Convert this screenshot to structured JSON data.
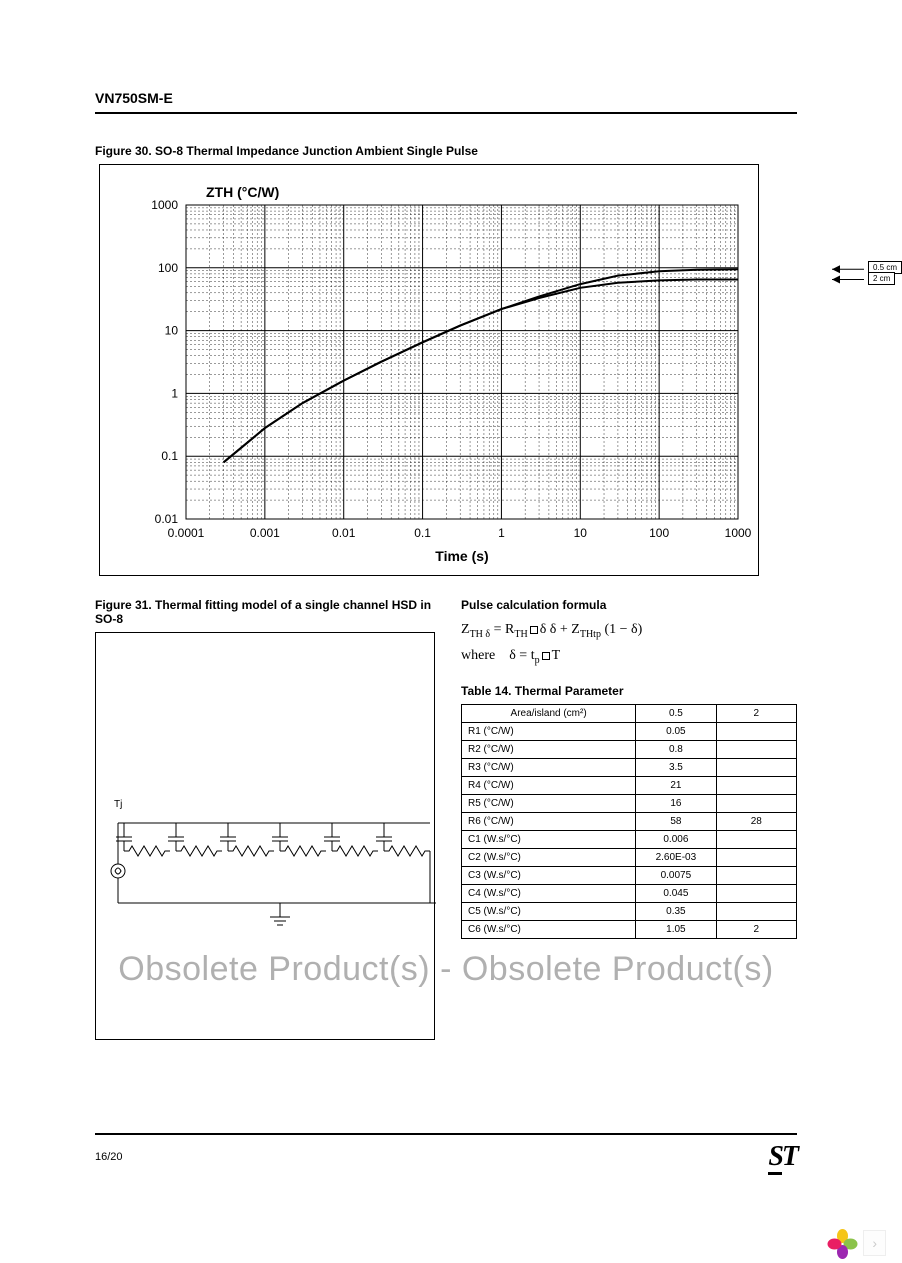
{
  "header": {
    "title": "VN750SM-E"
  },
  "figure30": {
    "caption": "Figure 30. SO-8 Thermal Impedance Junction Ambient Single Pulse",
    "ylabel": "ZTH (°C/W)",
    "xlabel": "Time (s)",
    "type": "line",
    "x_log": true,
    "y_log": true,
    "xlim": [
      0.0001,
      1000
    ],
    "ylim": [
      0.01,
      1000
    ],
    "xticks": [
      "0.0001",
      "0.001",
      "0.01",
      "0.1",
      "1",
      "10",
      "100",
      "1000"
    ],
    "yticks": [
      "0.01",
      "0.1",
      "1",
      "10",
      "100",
      "1000"
    ],
    "grid_color": "#000000",
    "line_color": "#000000",
    "line_width": 2,
    "bg_color": "#ffffff",
    "annotations": [
      {
        "label": "0.5 cm",
        "y_value": 95
      },
      {
        "label": "2 cm",
        "y_value": 65
      }
    ],
    "series": [
      {
        "name": "0.5cm",
        "points": [
          [
            0.0003,
            0.08
          ],
          [
            0.001,
            0.28
          ],
          [
            0.003,
            0.7
          ],
          [
            0.01,
            1.6
          ],
          [
            0.03,
            3.2
          ],
          [
            0.1,
            6.5
          ],
          [
            0.3,
            12
          ],
          [
            1,
            22
          ],
          [
            3,
            35
          ],
          [
            10,
            55
          ],
          [
            30,
            75
          ],
          [
            100,
            88
          ],
          [
            300,
            93
          ],
          [
            1000,
            95
          ]
        ]
      },
      {
        "name": "2cm",
        "points": [
          [
            0.0003,
            0.08
          ],
          [
            0.001,
            0.28
          ],
          [
            0.003,
            0.7
          ],
          [
            0.01,
            1.6
          ],
          [
            0.03,
            3.2
          ],
          [
            0.1,
            6.5
          ],
          [
            0.3,
            12
          ],
          [
            1,
            22
          ],
          [
            3,
            33
          ],
          [
            10,
            48
          ],
          [
            30,
            58
          ],
          [
            100,
            63
          ],
          [
            300,
            65
          ],
          [
            1000,
            65
          ]
        ]
      }
    ]
  },
  "figure31": {
    "caption": "Figure 31. Thermal fitting model of a single channel HSD in SO-8",
    "node_label": "Tj",
    "stages": 6
  },
  "formula": {
    "title": "Pulse calculation formula",
    "line1_a": "Z",
    "line1_sub1": "TH δ",
    "line1_b": " = R",
    "line1_sub2": "TH",
    "line1_c": "δ + Z",
    "line1_sub3": "THtp",
    "line1_d": " (1 − δ)",
    "line2_a": "where",
    "line2_b": "δ = t",
    "line2_sub": "p",
    "line2_c": "T"
  },
  "table14": {
    "caption": "Table 14. Thermal Parameter",
    "header": [
      "Area/island (cm²)",
      "0.5",
      "2"
    ],
    "rows": [
      [
        "R1 (°C/W)",
        "0.05",
        ""
      ],
      [
        "R2 (°C/W)",
        "0.8",
        ""
      ],
      [
        "R3 (°C/W)",
        "3.5",
        ""
      ],
      [
        "R4 (°C/W)",
        "21",
        ""
      ],
      [
        "R5 (°C/W)",
        "16",
        ""
      ],
      [
        "R6 (°C/W)",
        "58",
        "28"
      ],
      [
        "C1 (W.s/°C)",
        "0.006",
        ""
      ],
      [
        "C2 (W.s/°C)",
        "2.60E-03",
        ""
      ],
      [
        "C3 (W.s/°C)",
        "0.0075",
        ""
      ],
      [
        "C4 (W.s/°C)",
        "0.045",
        ""
      ],
      [
        "C5 (W.s/°C)",
        "0.35",
        ""
      ],
      [
        "C6 (W.s/°C)",
        "1.05",
        "2"
      ]
    ]
  },
  "watermark": "Obsolete Product(s) - Obsolete Product(s)",
  "footer": {
    "page": "16/20",
    "logo": "ST"
  },
  "corner_petals": [
    "#f5c518",
    "#8bc34a",
    "#9c27b0",
    "#e91e63"
  ]
}
